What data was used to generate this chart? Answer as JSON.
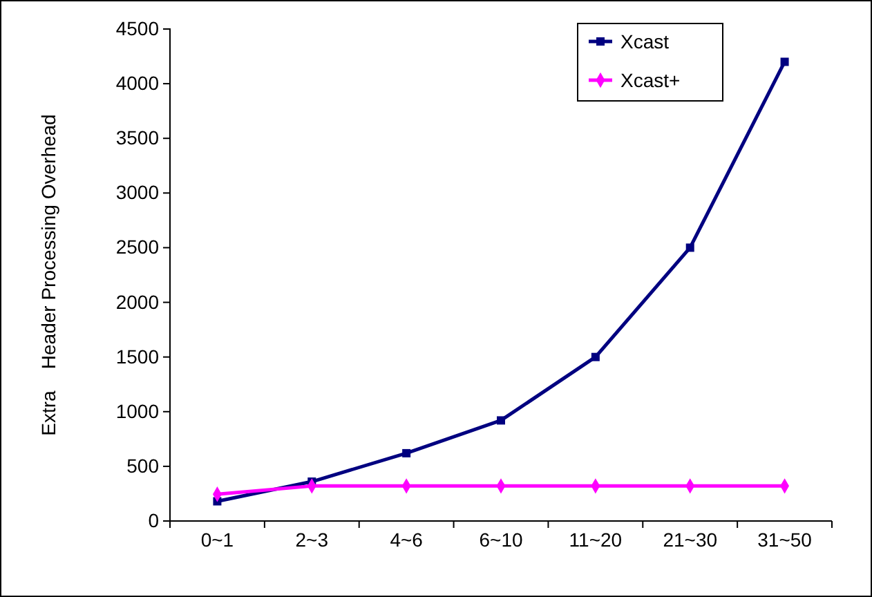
{
  "chart_data": {
    "type": "line",
    "ylabel": "Extra    Header Processing Overhead",
    "categories": [
      "0~1",
      "2~3",
      "4~6",
      "6~10",
      "11~20",
      "21~30",
      "31~50"
    ],
    "series": [
      {
        "name": "Xcast",
        "color": "#000080",
        "marker": "square",
        "values": [
          180,
          360,
          620,
          920,
          1500,
          2500,
          4200
        ]
      },
      {
        "name": "Xcast+",
        "color": "#ff00ff",
        "marker": "diamond",
        "values": [
          245,
          320,
          320,
          320,
          320,
          320,
          320
        ]
      }
    ],
    "ylim": [
      0,
      4500
    ],
    "yticks": [
      0,
      500,
      1000,
      1500,
      2000,
      2500,
      3000,
      3500,
      4000,
      4500
    ],
    "grid": false,
    "legend": "top right",
    "line_style": "solid"
  }
}
